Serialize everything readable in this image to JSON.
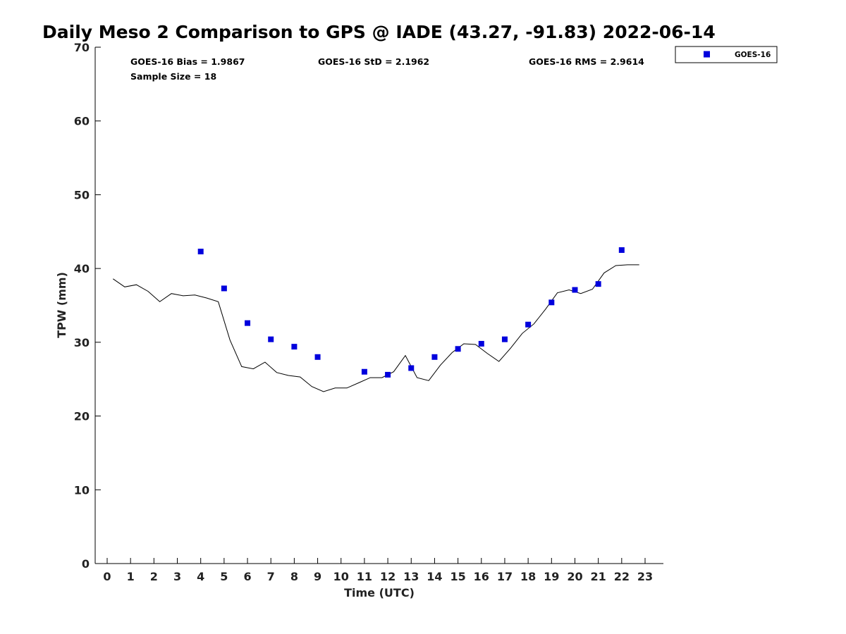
{
  "colors": {
    "goes_marker": "#0000dd",
    "gps_line": "#000000",
    "axis": "#000000"
  },
  "chart_data": {
    "type": "scatter",
    "title": "Daily Meso 2 Comparison to GPS @ IADE (43.27, -91.83) 2022-06-14",
    "xlabel": "Time (UTC)",
    "ylabel": "TPW (mm)",
    "xlim": [
      -0.5,
      23.8
    ],
    "ylim": [
      0,
      70
    ],
    "xticks": [
      0,
      1,
      2,
      3,
      4,
      5,
      6,
      7,
      8,
      9,
      10,
      11,
      12,
      13,
      14,
      15,
      16,
      17,
      18,
      19,
      20,
      21,
      22,
      23
    ],
    "yticks": [
      0,
      10,
      20,
      30,
      40,
      50,
      60,
      70
    ],
    "grid": false,
    "legend": {
      "placement": "outside-top-right",
      "entries": [
        "GOES-16"
      ]
    },
    "stats": {
      "bias": "GOES-16 Bias = 1.9867",
      "std": "GOES-16 StD = 2.1962",
      "rms": "GOES-16 RMS = 2.9614",
      "sample": "Sample Size = 18"
    },
    "series": [
      {
        "name": "GOES-16",
        "kind": "scatter",
        "x": [
          4,
          5,
          6,
          7,
          8,
          9,
          11,
          12,
          13,
          14,
          15,
          16,
          17,
          18,
          19,
          20,
          21,
          22
        ],
        "y": [
          42.3,
          37.3,
          32.6,
          30.4,
          29.4,
          28.0,
          26.0,
          25.6,
          26.5,
          28.0,
          29.1,
          29.8,
          30.4,
          32.4,
          35.4,
          37.1,
          37.9,
          42.5
        ]
      },
      {
        "kind": "line",
        "x": [
          0.25,
          0.75,
          1.25,
          1.75,
          2.25,
          2.75,
          3.25,
          3.75,
          4.25,
          4.75,
          5.25,
          5.75,
          6.25,
          6.75,
          7.25,
          7.75,
          8.25,
          8.75,
          9.25,
          9.75,
          10.25,
          10.75,
          11.25,
          11.75,
          12.25,
          12.75,
          13.25,
          13.75,
          14.25,
          14.75,
          15.25,
          15.75,
          16.25,
          16.75,
          17.25,
          17.75,
          18.25,
          18.75,
          19.25,
          19.75,
          20.25,
          20.75,
          21.25,
          21.75,
          22.25,
          22.75
        ],
        "y": [
          38.6,
          37.5,
          37.8,
          36.9,
          35.5,
          36.6,
          36.3,
          36.4,
          36.0,
          35.5,
          30.3,
          26.7,
          26.4,
          27.3,
          25.9,
          25.5,
          25.3,
          24.0,
          23.3,
          23.8,
          23.8,
          24.5,
          25.2,
          25.2,
          26.0,
          28.2,
          25.2,
          24.8,
          26.9,
          28.6,
          29.8,
          29.7,
          28.5,
          27.4,
          29.2,
          31.2,
          32.5,
          34.5,
          36.7,
          37.1,
          36.6,
          37.2,
          39.4,
          40.4,
          40.5,
          40.5
        ]
      }
    ]
  }
}
